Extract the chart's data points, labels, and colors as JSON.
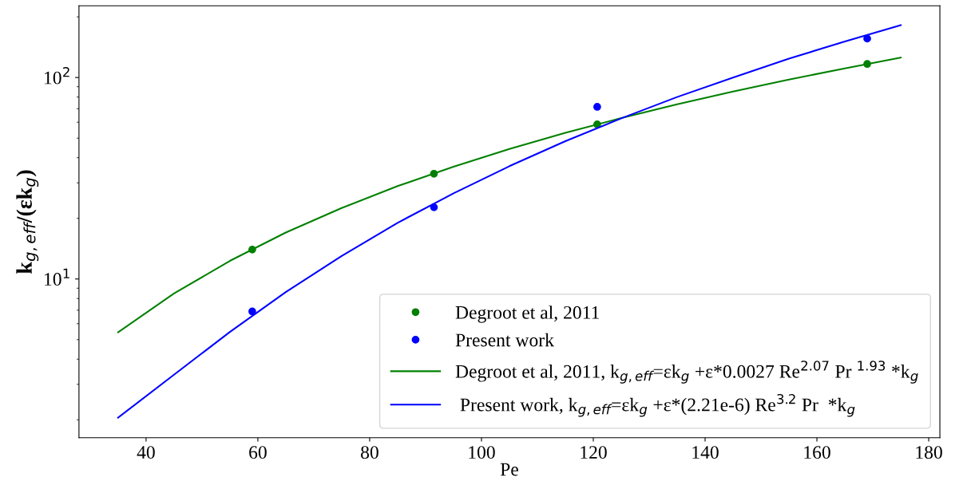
{
  "chart_data": {
    "type": "scatter",
    "xlabel": "Pe",
    "ylabel": "k$_{g,eff}$/(εk$_{g}$)",
    "log": "y",
    "grid": false,
    "legend": "bottom right",
    "xlim": [
      28,
      182
    ],
    "xticks": [
      40,
      60,
      80,
      100,
      120,
      140,
      160,
      180
    ],
    "ylim": [
      1.63,
      227
    ],
    "yticks": [
      {
        "value": 10,
        "label": "10$^{1}$"
      },
      {
        "value": 100,
        "label": "10$^{2}$"
      }
    ],
    "series": [
      {
        "name": "Degroot et al, 2011",
        "marker": "circle",
        "color": "#008000",
        "x": [
          59,
          91.5,
          120.7,
          169
        ],
        "values": [
          14.0,
          33.3,
          58.5,
          116.7
        ]
      },
      {
        "name": "Present work",
        "marker": "circle",
        "color": "#0000ff",
        "x": [
          59,
          91.5,
          120.7,
          169
        ],
        "values": [
          6.9,
          22.7,
          71.5,
          156
        ]
      },
      {
        "name": "Degroot et al, 2011, k$_{g,eff}$=εk$_{g}$ +ε*0.0027 Re$^{2.07}$ Pr $^{1.93}$ *k$_{g}$",
        "type": "line",
        "color": "#008000",
        "x": [
          35,
          45,
          55,
          65,
          75,
          85,
          95,
          105,
          115,
          125,
          135,
          145,
          155,
          165,
          175
        ],
        "values": [
          5.44,
          8.47,
          12.3,
          17.0,
          22.5,
          28.9,
          36.1,
          44.2,
          53.1,
          62.9,
          73.6,
          85.2,
          97.7,
          111,
          125.5
        ]
      },
      {
        "name": " Present work, k$_{g,eff}$=εk$_{g}$ +ε*(2.21e-6) Re$^{3.2}$ Pr  *k$_{g}$",
        "type": "line",
        "color": "#0000ff",
        "x": [
          35,
          45,
          55,
          65,
          75,
          85,
          95,
          105,
          115,
          125,
          135,
          145,
          155,
          165,
          175
        ],
        "values": [
          2.05,
          3.35,
          5.46,
          8.61,
          13.0,
          19.0,
          26.6,
          36.3,
          48.3,
          62.7,
          80.0,
          100,
          124,
          151,
          182
        ]
      }
    ]
  }
}
